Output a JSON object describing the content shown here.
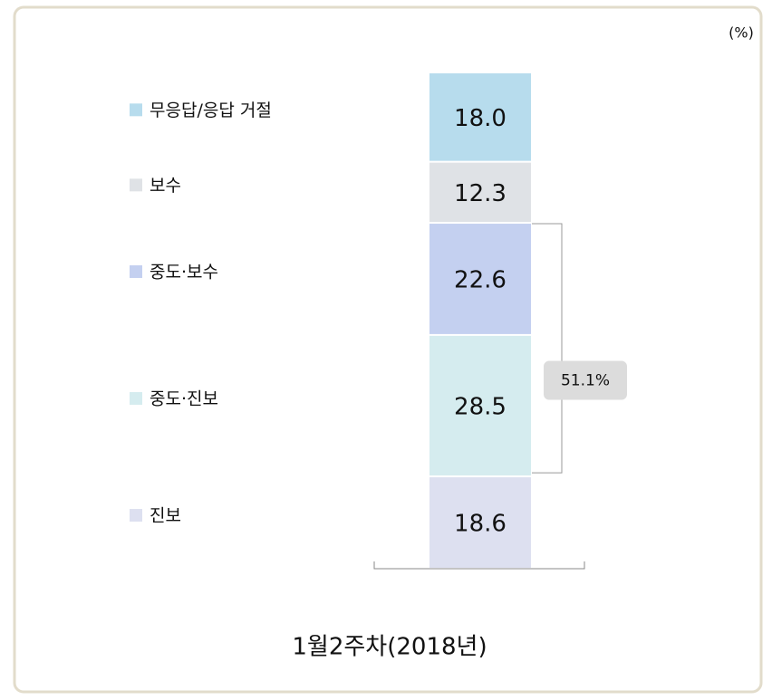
{
  "chart_data": {
    "type": "stacked_bar",
    "unit_label": "(%)",
    "categories": [
      "1월2주차(2018년)"
    ],
    "series": [
      {
        "name": "진보",
        "color": "#dde0f0",
        "values": [
          18.6
        ]
      },
      {
        "name": "중도·진보",
        "color": "#d5ecef",
        "values": [
          28.5
        ]
      },
      {
        "name": "중도·보수",
        "color": "#c4d0f0",
        "values": [
          22.6
        ]
      },
      {
        "name": "보수",
        "color": "#dfe2e6",
        "values": [
          12.3
        ]
      },
      {
        "name": "무응답/응답 거절",
        "color": "#b7dced",
        "values": [
          18.0
        ],
        "value_labels": [
          "18.0"
        ]
      }
    ],
    "ylim": [
      0,
      100
    ],
    "annotation": {
      "value": 51.1,
      "label": "51.1%"
    }
  }
}
